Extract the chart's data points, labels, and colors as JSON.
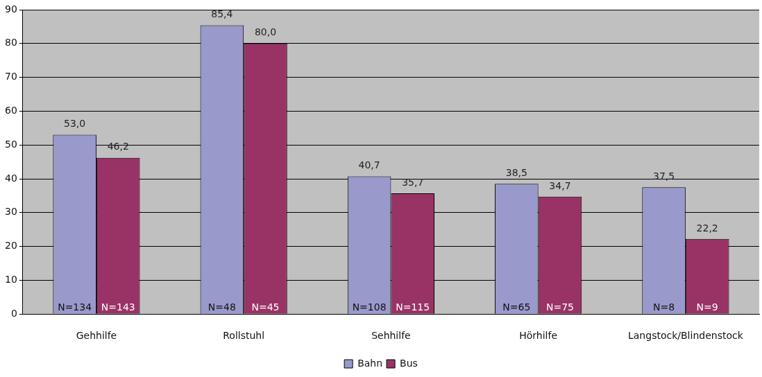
{
  "chart_data": {
    "type": "bar",
    "categories": [
      "Gehhilfe",
      "Rollstuhl",
      "Sehhilfe",
      "Hörhilfe",
      "Langstock/Blindenstock"
    ],
    "series": [
      {
        "name": "Bahn",
        "color": "#9999cc",
        "values": [
          53.0,
          85.4,
          40.7,
          38.5,
          37.5
        ],
        "value_labels": [
          "53,0",
          "85,4",
          "40,7",
          "38,5",
          "37,5"
        ]
      },
      {
        "name": "Bus",
        "color": "#993366",
        "values": [
          46.2,
          80.0,
          35.7,
          34.7,
          22.2
        ],
        "value_labels": [
          "46,2",
          "80,0",
          "35,7",
          "34,7",
          "22,2"
        ]
      }
    ],
    "annotations": [
      "N=134",
      "N=143",
      "N=48",
      "N=45",
      "N=108",
      "N=115",
      "N=65",
      "N=75",
      "N=8",
      "N=9"
    ],
    "ylim": [
      0,
      90
    ],
    "yticks": [
      0,
      10,
      20,
      30,
      40,
      50,
      60,
      70,
      80,
      90
    ],
    "grid": "y",
    "legend": "bottom"
  }
}
